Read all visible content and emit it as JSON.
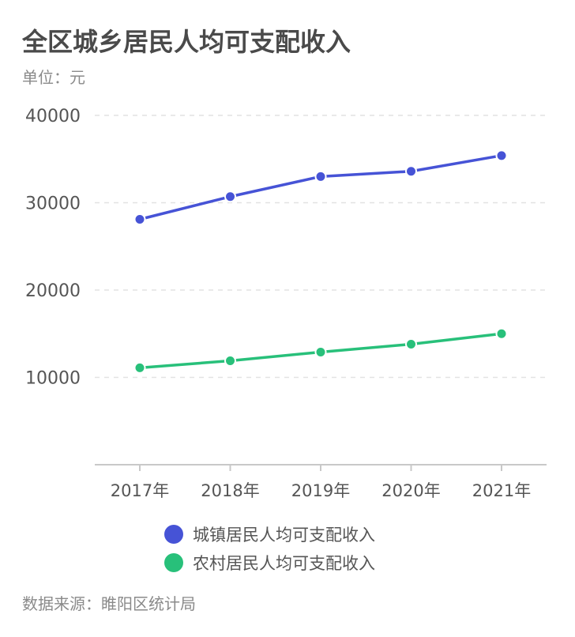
{
  "title": "全区城乡居民人均可支配收入",
  "unit": "单位：元",
  "source": "数据来源：睢阳区统计局",
  "chart_data": {
    "type": "line",
    "categories": [
      "2017年",
      "2018年",
      "2019年",
      "2020年",
      "2021年"
    ],
    "series": [
      {
        "name": "城镇居民人均可支配收入",
        "values": [
          28100,
          30700,
          33000,
          33600,
          35400
        ],
        "color": "#4653d6"
      },
      {
        "name": "农村居民人均可支配收入",
        "values": [
          11100,
          11900,
          12900,
          13800,
          15000
        ],
        "color": "#28c07a"
      }
    ],
    "yticks": [
      "40000",
      "30000",
      "20000",
      "10000"
    ],
    "ylim": [
      0,
      40000
    ],
    "grid": true,
    "legend": "bottom"
  }
}
